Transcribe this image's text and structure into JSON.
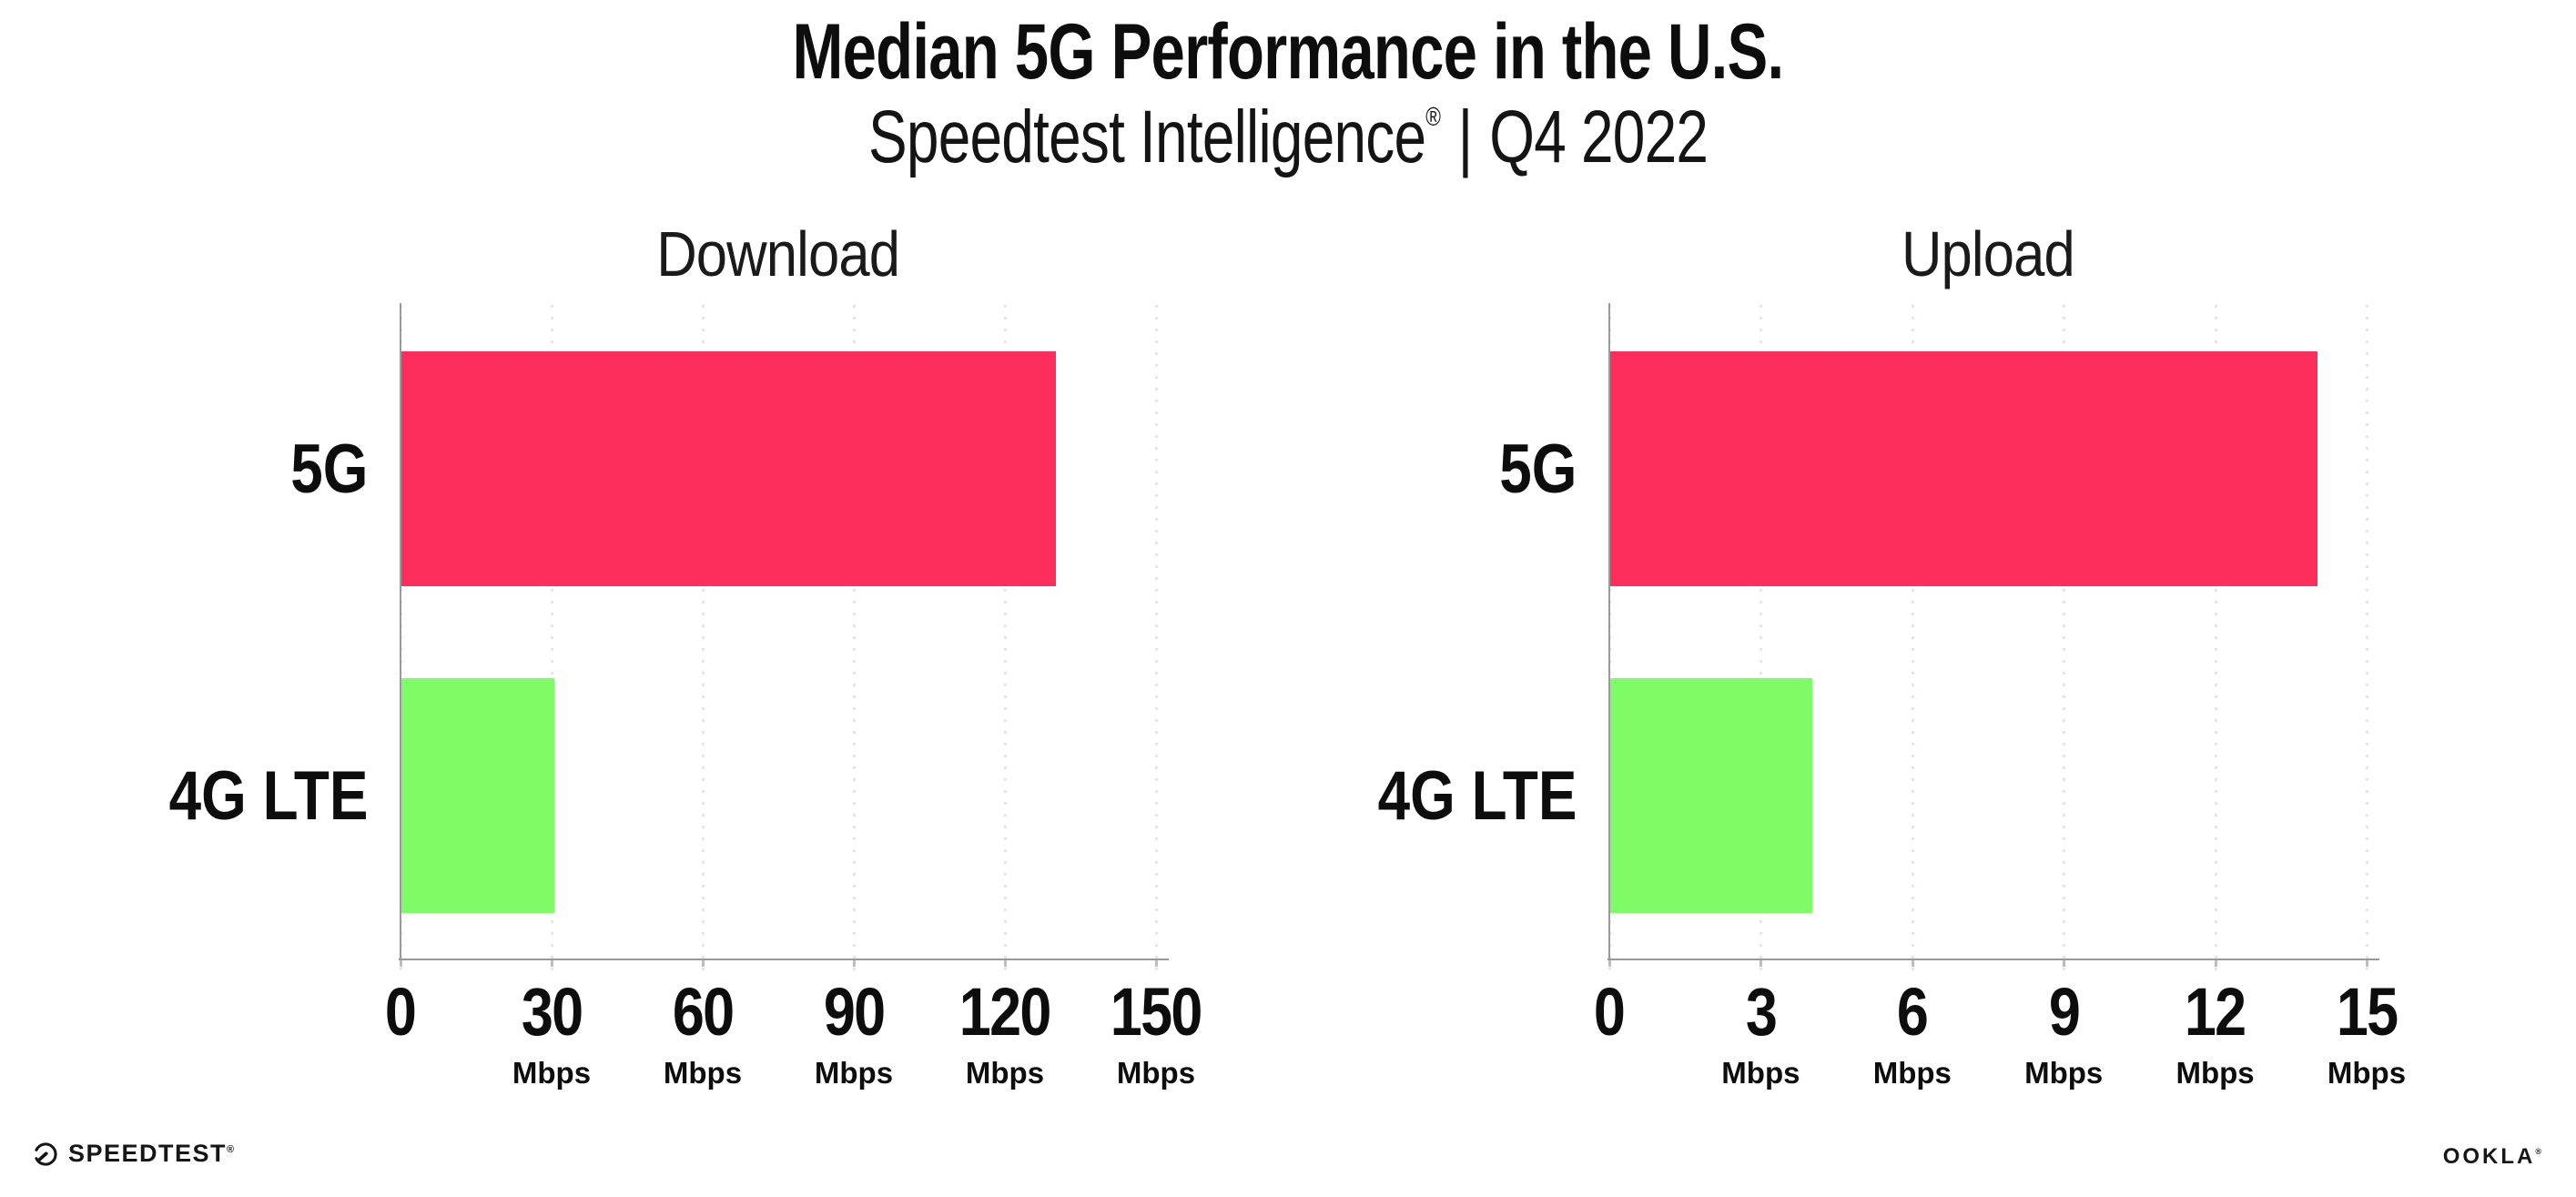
{
  "header": {
    "title": "Median 5G Performance in the U.S.",
    "subtitle_product": "Speedtest Intelligence",
    "subtitle_reg": "®",
    "subtitle_sep": "|",
    "subtitle_period": "Q4 2022"
  },
  "footer": {
    "speedtest_wordmark": "SPEEDTEST",
    "speedtest_trademark": "®",
    "gauge_icon": "speedometer-gauge-icon",
    "ookla_wordmark": "OOKLA",
    "ookla_trademark": "®"
  },
  "colors": {
    "bar_5g": "#FD2E5C",
    "bar_4g_lte": "#7EFB66",
    "axis_line": "#9A9AA0",
    "gridline_dots": "#E4E4F0",
    "text": "#0D0D0D",
    "background": "#FFFFFF"
  },
  "chart_data": [
    {
      "type": "bar",
      "orientation": "horizontal",
      "title": "Download",
      "categories": [
        "5G",
        "4G LTE"
      ],
      "values": [
        130,
        30.4
      ],
      "unit": "Mbps",
      "xlim": [
        0,
        150
      ],
      "xticks": [
        0,
        30,
        60,
        90,
        120,
        150
      ],
      "tick_unit_label": "Mbps",
      "bar_colors": [
        "#FD2E5C",
        "#7EFB66"
      ],
      "grid": "dotted-vertical",
      "legend": "none"
    },
    {
      "type": "bar",
      "orientation": "horizontal",
      "title": "Upload",
      "categories": [
        "5G",
        "4G LTE"
      ],
      "values": [
        14,
        4
      ],
      "unit": "Mbps",
      "xlim": [
        0,
        15
      ],
      "xticks": [
        0,
        3,
        6,
        9,
        12,
        15
      ],
      "tick_unit_label": "Mbps",
      "bar_colors": [
        "#FD2E5C",
        "#7EFB66"
      ],
      "grid": "dotted-vertical",
      "legend": "none"
    }
  ]
}
